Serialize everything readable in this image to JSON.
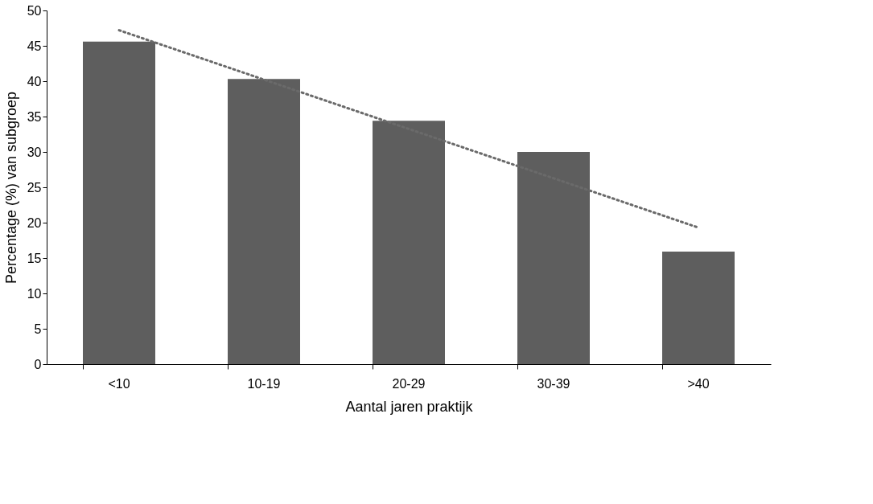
{
  "chart_data": {
    "type": "bar",
    "xlabel": "Aantal jaren praktijk",
    "ylabel": "Percentage (%) van subgroep",
    "categories": [
      "<10",
      "10-19",
      "20-29",
      "30-39",
      ">40"
    ],
    "series": [
      {
        "color": "#5e5e5e",
        "values": [
          45.6,
          40.3,
          34.4,
          30.0,
          15.9
        ]
      },
      {
        "type": "line",
        "color": "#6a6a6a",
        "line_style": "dotted",
        "x": [
          "<10",
          ">40"
        ],
        "values": [
          47.2,
          19.3
        ]
      }
    ],
    "ylim": [
      0,
      50
    ],
    "yticks": [
      0,
      5,
      10,
      15,
      20,
      25,
      30,
      35,
      40,
      45,
      50
    ],
    "grid": false
  }
}
